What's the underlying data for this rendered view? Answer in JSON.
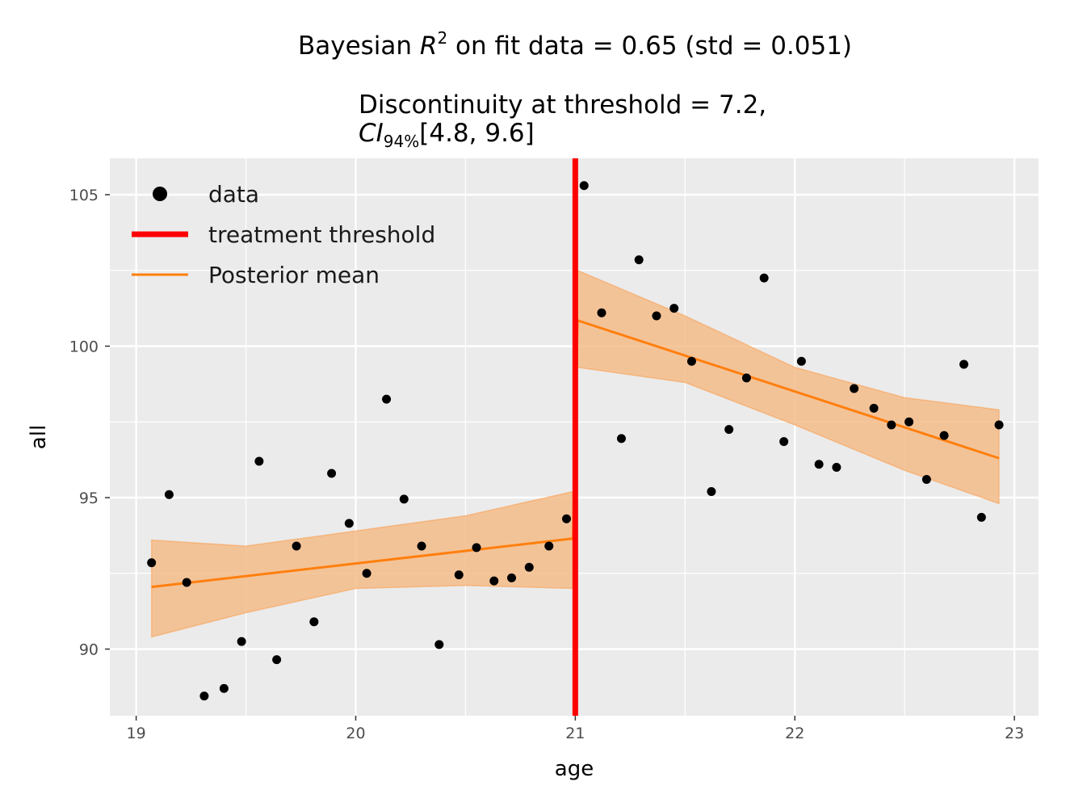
{
  "chart_data": {
    "type": "scatter",
    "title_line1": {
      "prefix": "Bayesian ",
      "var": "R",
      "sup": "2",
      "suffix": " on fit data = 0.65 (std = 0.051)"
    },
    "title_line2": "Discontinuity at threshold = 7.2,",
    "title_line3": {
      "var": "CI",
      "sub": "94%",
      "suffix": "[4.8, 9.6]"
    },
    "xlabel": "age",
    "ylabel": "all",
    "xlim": [
      18.88,
      23.11
    ],
    "ylim": [
      87.8,
      106.2
    ],
    "xticks": [
      19,
      20,
      21,
      22,
      23
    ],
    "yticks": [
      90,
      95,
      100,
      105
    ],
    "grid": true,
    "legend_position": "top-left",
    "threshold": 21,
    "colors": {
      "panel": "#ebebeb",
      "grid": "#ffffff",
      "points": "#000000",
      "threshold": "#ff0000",
      "mean": "#ff7f0e",
      "band": "#f5bc8a"
    },
    "legend": [
      {
        "label": "data",
        "kind": "point"
      },
      {
        "label": "treatment threshold",
        "kind": "threshold"
      },
      {
        "label": "Posterior mean",
        "kind": "line"
      }
    ],
    "points": [
      {
        "x": 19.07,
        "y": 92.85
      },
      {
        "x": 19.15,
        "y": 95.1
      },
      {
        "x": 19.23,
        "y": 92.2
      },
      {
        "x": 19.31,
        "y": 88.45
      },
      {
        "x": 19.4,
        "y": 88.7
      },
      {
        "x": 19.48,
        "y": 90.25
      },
      {
        "x": 19.56,
        "y": 96.2
      },
      {
        "x": 19.64,
        "y": 89.65
      },
      {
        "x": 19.73,
        "y": 93.4
      },
      {
        "x": 19.81,
        "y": 90.9
      },
      {
        "x": 19.89,
        "y": 95.8
      },
      {
        "x": 19.97,
        "y": 94.15
      },
      {
        "x": 20.05,
        "y": 92.5
      },
      {
        "x": 20.14,
        "y": 98.25
      },
      {
        "x": 20.22,
        "y": 94.95
      },
      {
        "x": 20.3,
        "y": 93.4
      },
      {
        "x": 20.38,
        "y": 90.15
      },
      {
        "x": 20.47,
        "y": 92.45
      },
      {
        "x": 20.55,
        "y": 93.35
      },
      {
        "x": 20.63,
        "y": 92.25
      },
      {
        "x": 20.71,
        "y": 92.35
      },
      {
        "x": 20.79,
        "y": 92.7
      },
      {
        "x": 20.88,
        "y": 93.4
      },
      {
        "x": 20.96,
        "y": 94.3
      },
      {
        "x": 21.04,
        "y": 105.3
      },
      {
        "x": 21.12,
        "y": 101.1
      },
      {
        "x": 21.21,
        "y": 96.95
      },
      {
        "x": 21.29,
        "y": 102.85
      },
      {
        "x": 21.37,
        "y": 101.0
      },
      {
        "x": 21.45,
        "y": 101.25
      },
      {
        "x": 21.53,
        "y": 99.5
      },
      {
        "x": 21.62,
        "y": 95.2
      },
      {
        "x": 21.7,
        "y": 97.25
      },
      {
        "x": 21.78,
        "y": 98.95
      },
      {
        "x": 21.86,
        "y": 102.25
      },
      {
        "x": 21.95,
        "y": 96.85
      },
      {
        "x": 22.03,
        "y": 99.5
      },
      {
        "x": 22.11,
        "y": 96.1
      },
      {
        "x": 22.19,
        "y": 96.0
      },
      {
        "x": 22.27,
        "y": 98.6
      },
      {
        "x": 22.36,
        "y": 97.95
      },
      {
        "x": 22.44,
        "y": 97.4
      },
      {
        "x": 22.52,
        "y": 97.5
      },
      {
        "x": 22.6,
        "y": 95.6
      },
      {
        "x": 22.68,
        "y": 97.05
      },
      {
        "x": 22.77,
        "y": 99.4
      },
      {
        "x": 22.85,
        "y": 94.35
      },
      {
        "x": 22.93,
        "y": 97.4
      }
    ],
    "posterior_mean": [
      [
        {
          "x": 19.07,
          "y": 92.05
        },
        {
          "x": 20.99,
          "y": 93.65
        }
      ],
      [
        {
          "x": 21.01,
          "y": 100.85
        },
        {
          "x": 22.93,
          "y": 96.3
        }
      ]
    ],
    "ci_band": [
      {
        "upper": [
          {
            "x": 19.07,
            "y": 93.6
          },
          {
            "x": 19.5,
            "y": 93.4
          },
          {
            "x": 20.0,
            "y": 93.9
          },
          {
            "x": 20.5,
            "y": 94.4
          },
          {
            "x": 20.99,
            "y": 95.2
          }
        ],
        "lower": [
          {
            "x": 19.07,
            "y": 90.4
          },
          {
            "x": 19.5,
            "y": 91.2
          },
          {
            "x": 20.0,
            "y": 92.0
          },
          {
            "x": 20.5,
            "y": 92.1
          },
          {
            "x": 20.99,
            "y": 92.0
          }
        ]
      },
      {
        "upper": [
          {
            "x": 21.01,
            "y": 102.5
          },
          {
            "x": 21.5,
            "y": 101.0
          },
          {
            "x": 22.0,
            "y": 99.3
          },
          {
            "x": 22.5,
            "y": 98.3
          },
          {
            "x": 22.93,
            "y": 97.9
          }
        ],
        "lower": [
          {
            "x": 21.01,
            "y": 99.3
          },
          {
            "x": 21.5,
            "y": 98.8
          },
          {
            "x": 22.0,
            "y": 97.4
          },
          {
            "x": 22.5,
            "y": 95.9
          },
          {
            "x": 22.93,
            "y": 94.8
          }
        ]
      }
    ]
  }
}
